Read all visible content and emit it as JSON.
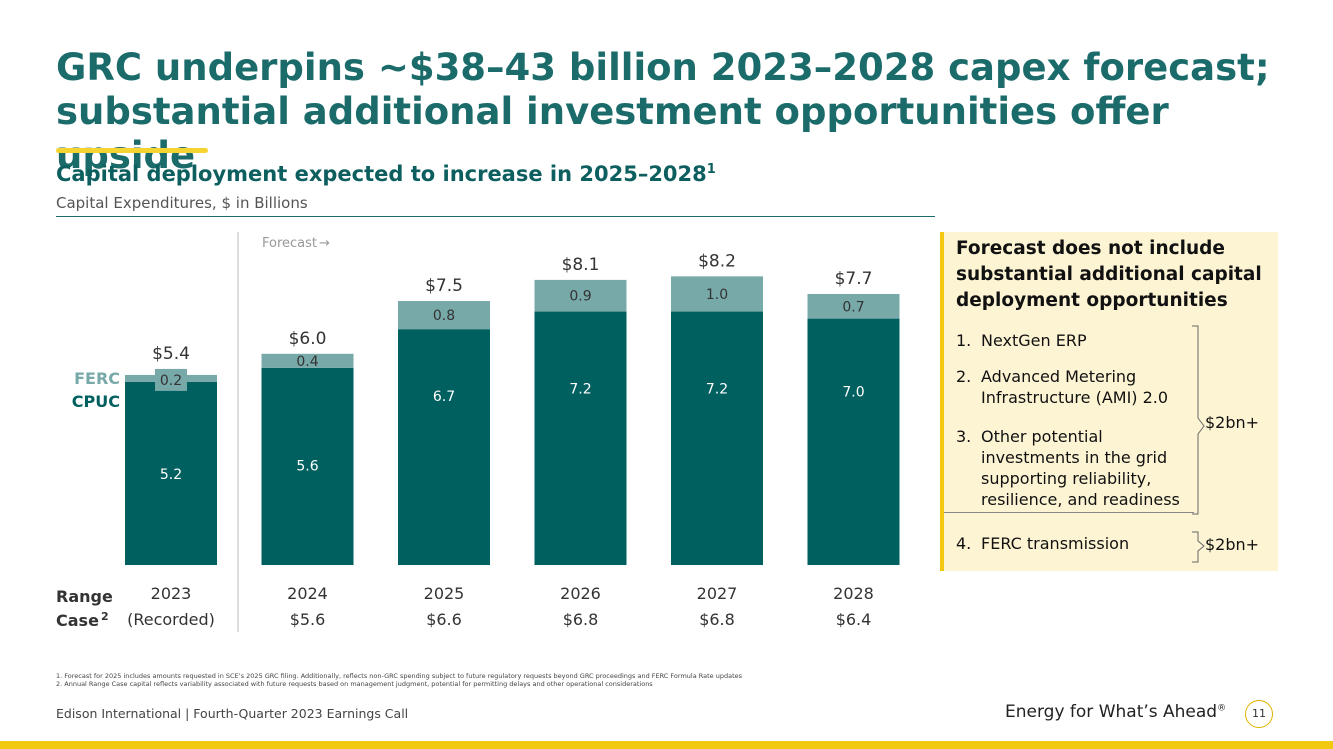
{
  "header": {
    "title": "GRC underpins ~$38–43 billion 2023–2028 capex forecast; substantial additional investment opportunities offer upside",
    "subtitle": "Capital deployment expected to increase in 2025–2028",
    "subtitle_footnote_ref": "1",
    "subnote": "Capital Expenditures, $ in Billions"
  },
  "chart_data": {
    "type": "bar",
    "stacked": true,
    "categories": [
      "2023",
      "2024",
      "2025",
      "2026",
      "2027",
      "2028"
    ],
    "category_sublabels": [
      "(Recorded)",
      "$5.6",
      "$6.6",
      "$6.8",
      "$6.8",
      "$6.4"
    ],
    "series": [
      {
        "name": "CPUC",
        "values": [
          5.2,
          5.6,
          6.7,
          7.2,
          7.2,
          7.0
        ],
        "color": "#005f5f"
      },
      {
        "name": "FERC",
        "values": [
          0.2,
          0.4,
          0.8,
          0.9,
          1.0,
          0.7
        ],
        "color": "#78a9a9"
      }
    ],
    "totals": [
      "$5.4",
      "$6.0",
      "$7.5",
      "$8.1",
      "$8.2",
      "$7.7"
    ],
    "segment_labels": {
      "CPUC": [
        "5.2",
        "5.6",
        "6.7",
        "7.2",
        "7.2",
        "7.0"
      ],
      "FERC": [
        "0.2",
        "0.4",
        "0.8",
        "0.9",
        "1.0",
        "0.7"
      ]
    },
    "forecast_label": "Forecast",
    "forecast_arrow": "→",
    "range_case_label": "Range",
    "range_case_label_2": "Case",
    "range_case_footnote_ref": "2",
    "ylim": [
      0,
      9
    ],
    "grid": false,
    "legend": "left"
  },
  "panel": {
    "title": "Forecast does not include substantial additional capital deployment opportunities",
    "items": [
      {
        "num": "1.",
        "text": "NextGen ERP"
      },
      {
        "num": "2.",
        "text": "Advanced Metering Infrastructure (AMI) 2.0"
      },
      {
        "num": "3.",
        "text": "Other potential investments in the grid supporting reliability, resilience, and readiness"
      },
      {
        "num": "4.",
        "text": "FERC transmission"
      }
    ],
    "bracket_1_label": "$2bn+",
    "bracket_2_label": "$2bn+"
  },
  "footnotes": [
    "1.  Forecast for 2025 includes amounts requested in SCE’s 2025 GRC filing. Additionally, reflects non-GRC spending subject to future regulatory requests beyond GRC proceedings and FERC Formula Rate updates",
    "2.  Annual Range Case capital reflects variability associated with future requests based on management judgment, potential for permitting delays and other operational considerations"
  ],
  "footer": {
    "left": "Edison International |  Fourth-Quarter 2023 Earnings Call",
    "tagline": "Energy for What’s Ahead",
    "tagline_mark": "®",
    "page_number": "11"
  }
}
